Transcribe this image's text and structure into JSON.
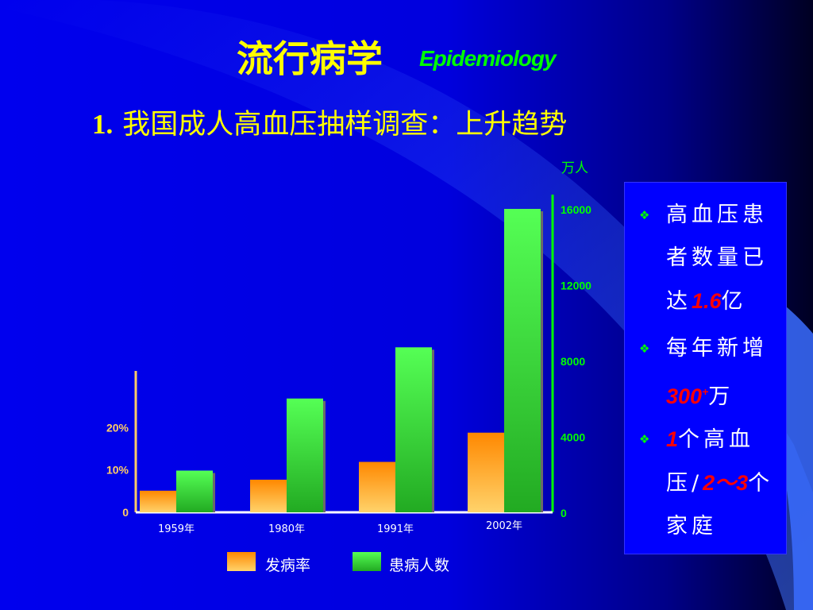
{
  "slide": {
    "title_cn": "流行病学",
    "title_en": "Epidemiology",
    "subtitle_num": "1.",
    "subtitle": "我国成人高血压抽样调查：上升趋势"
  },
  "chart_data": {
    "type": "bar",
    "categories": [
      "1959年",
      "1980年",
      "1991年",
      "2002年"
    ],
    "series": [
      {
        "name": "发病率",
        "axis": "left",
        "values": [
          5.1,
          7.7,
          11.9,
          18.8
        ],
        "color": "#ff9900"
      },
      {
        "name": "患病人数",
        "axis": "right",
        "values": [
          2200,
          6000,
          8700,
          16000
        ],
        "color": "#33dd33"
      }
    ],
    "left_axis": {
      "ticks": [
        "0",
        "10%",
        "20%"
      ],
      "tick_values": [
        0,
        10,
        20
      ],
      "range": [
        0,
        30
      ],
      "color": "#ffcc66"
    },
    "right_axis": {
      "unit": "万人",
      "ticks": [
        "0",
        "4000",
        "8000",
        "12000",
        "16000"
      ],
      "tick_values": [
        0,
        4000,
        8000,
        12000,
        16000
      ],
      "range": [
        0,
        16600
      ],
      "color": "#00ff00"
    },
    "legend": {
      "position": "bottom"
    },
    "grid": false
  },
  "side_panel": {
    "bullet_icon": "diamond-bullet-icon",
    "items": [
      {
        "pre": "高血压患者数量已达",
        "highlight": "1.6",
        "post": "亿"
      },
      {
        "pre": "每年新增",
        "highlight": "300",
        "sup": "+",
        "post": "万"
      },
      {
        "highlight_a": "1",
        "mid": "个高血压/",
        "highlight_b": "2～3",
        "post": "个家庭"
      }
    ]
  }
}
